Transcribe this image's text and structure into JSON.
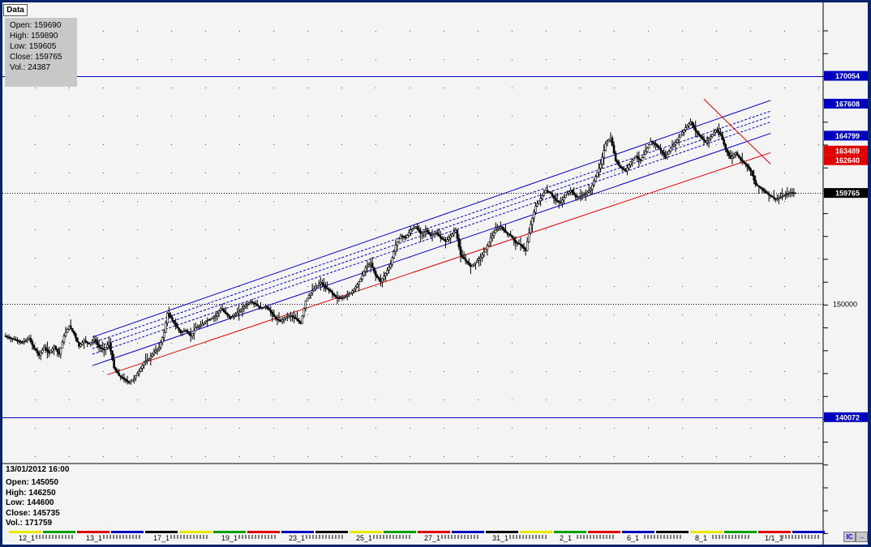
{
  "toolbar": {
    "tab_label": "Data"
  },
  "ohlc_panel": {
    "open": "Open: 159690",
    "high": "High: 159890",
    "low": "Low: 159605",
    "close": "Close: 159765",
    "vol": "Vol.: 24387"
  },
  "cursor_panel": {
    "datetime": "13/01/2012 16:00",
    "open": "Open: 145050",
    "high": "High: 146250",
    "low": "Low: 144600",
    "close": "Close: 145735",
    "vol": "Vol.: 171759"
  },
  "controls": {
    "btn1": "IC",
    "btn2": "→"
  },
  "colors": {
    "background": "#f4f4f4",
    "frame": "#0a246a",
    "candle": "#000000",
    "channel": "#0000c0",
    "trendline": "#e00000",
    "tag_blue": "#0000c0",
    "tag_red": "#e00000",
    "tag_black": "#000000"
  },
  "chart_data": {
    "type": "candlestick",
    "title": "",
    "xlabel": "",
    "ylabel": "",
    "ylim": [
      136000,
      176500
    ],
    "grid": "dotted",
    "x_ticks": [
      "12_1",
      "13_1",
      "17_1",
      "19_1",
      "23_1",
      "25_1",
      "27_1",
      "31_1",
      "2_1",
      "6_1",
      "8_1",
      "1/1_1"
    ],
    "y_ticks": [
      150000
    ],
    "price_tags": [
      {
        "value": 170054,
        "label": "170054",
        "style": "blue"
      },
      {
        "value": 167608,
        "label": "167608",
        "style": "blue"
      },
      {
        "value": 164799,
        "label": "164799",
        "style": "blue"
      },
      {
        "value": 163489,
        "label": "163489",
        "style": "red"
      },
      {
        "value": 162640,
        "label": "162640",
        "style": "red"
      },
      {
        "value": 159765,
        "label": "159765",
        "style": "black"
      },
      {
        "value": 140072,
        "label": "140072",
        "style": "blue"
      }
    ],
    "horizontal_lines": [
      {
        "value": 170054,
        "style": "solid-blue"
      },
      {
        "value": 159765,
        "style": "dotted-black"
      },
      {
        "value": 150000,
        "style": "dotted-black"
      },
      {
        "value": 140072,
        "style": "solid-blue"
      }
    ],
    "close_path": [
      [
        0,
        147200
      ],
      [
        6,
        146900
      ],
      [
        11,
        146600
      ],
      [
        15,
        147000
      ],
      [
        18,
        146100
      ],
      [
        21,
        145500
      ],
      [
        24,
        146200
      ],
      [
        27,
        145700
      ],
      [
        30,
        146300
      ],
      [
        33,
        145600
      ],
      [
        36,
        147200
      ],
      [
        39,
        148100
      ],
      [
        42,
        147400
      ],
      [
        45,
        146300
      ],
      [
        48,
        146800
      ],
      [
        51,
        146500
      ],
      [
        54,
        146900
      ],
      [
        57,
        146200
      ],
      [
        60,
        146000
      ],
      [
        63,
        146600
      ],
      [
        66,
        144400
      ],
      [
        69,
        143700
      ],
      [
        72,
        143400
      ],
      [
        75,
        143100
      ],
      [
        78,
        143500
      ],
      [
        81,
        144100
      ],
      [
        84,
        144900
      ],
      [
        87,
        145200
      ],
      [
        90,
        145800
      ],
      [
        93,
        146200
      ],
      [
        96,
        147500
      ],
      [
        98,
        149200
      ],
      [
        100,
        148800
      ],
      [
        103,
        148100
      ],
      [
        106,
        147500
      ],
      [
        109,
        147700
      ],
      [
        112,
        147200
      ],
      [
        115,
        147900
      ],
      [
        118,
        148100
      ],
      [
        121,
        148500
      ],
      [
        124,
        148700
      ],
      [
        127,
        149000
      ],
      [
        130,
        149600
      ],
      [
        133,
        149200
      ],
      [
        136,
        148800
      ],
      [
        139,
        149100
      ],
      [
        142,
        149500
      ],
      [
        145,
        149900
      ],
      [
        148,
        150200
      ],
      [
        151,
        150000
      ],
      [
        154,
        149600
      ],
      [
        157,
        149800
      ],
      [
        160,
        149300
      ],
      [
        163,
        148700
      ],
      [
        166,
        148500
      ],
      [
        169,
        148900
      ],
      [
        172,
        149000
      ],
      [
        175,
        148700
      ],
      [
        178,
        148300
      ],
      [
        181,
        150300
      ],
      [
        184,
        151000
      ],
      [
        187,
        151500
      ],
      [
        190,
        151900
      ],
      [
        193,
        151400
      ],
      [
        196,
        151100
      ],
      [
        199,
        150600
      ],
      [
        202,
        150500
      ],
      [
        205,
        150700
      ],
      [
        208,
        151000
      ],
      [
        211,
        151500
      ],
      [
        214,
        152200
      ],
      [
        217,
        153200
      ],
      [
        220,
        153600
      ],
      [
        223,
        152500
      ],
      [
        226,
        152000
      ],
      [
        229,
        152700
      ],
      [
        232,
        153500
      ],
      [
        235,
        155200
      ],
      [
        238,
        156000
      ],
      [
        241,
        155800
      ],
      [
        244,
        156500
      ],
      [
        247,
        156800
      ],
      [
        250,
        156200
      ],
      [
        253,
        156500
      ],
      [
        256,
        156000
      ],
      [
        259,
        156300
      ],
      [
        262,
        155800
      ],
      [
        265,
        155500
      ],
      [
        268,
        156000
      ],
      [
        271,
        156500
      ],
      [
        274,
        154300
      ],
      [
        277,
        153800
      ],
      [
        280,
        153300
      ],
      [
        283,
        153700
      ],
      [
        286,
        154100
      ],
      [
        289,
        154800
      ],
      [
        292,
        155800
      ],
      [
        295,
        156500
      ],
      [
        298,
        156800
      ],
      [
        301,
        156300
      ],
      [
        304,
        156000
      ],
      [
        307,
        155400
      ],
      [
        310,
        155200
      ],
      [
        313,
        154700
      ],
      [
        316,
        157000
      ],
      [
        319,
        158600
      ],
      [
        322,
        159300
      ],
      [
        325,
        160000
      ],
      [
        328,
        159700
      ],
      [
        331,
        159100
      ],
      [
        334,
        158900
      ],
      [
        337,
        159600
      ],
      [
        340,
        160000
      ],
      [
        343,
        159400
      ],
      [
        346,
        159500
      ],
      [
        349,
        159700
      ],
      [
        352,
        160100
      ],
      [
        355,
        161200
      ],
      [
        358,
        162300
      ],
      [
        361,
        164100
      ],
      [
        364,
        164600
      ],
      [
        367,
        162600
      ],
      [
        370,
        162000
      ],
      [
        373,
        161700
      ],
      [
        376,
        162500
      ],
      [
        379,
        163000
      ],
      [
        382,
        162600
      ],
      [
        385,
        163400
      ],
      [
        388,
        164300
      ],
      [
        391,
        164000
      ],
      [
        394,
        163500
      ],
      [
        397,
        162900
      ],
      [
        400,
        163700
      ],
      [
        403,
        164200
      ],
      [
        406,
        164900
      ],
      [
        409,
        165500
      ],
      [
        412,
        166000
      ],
      [
        415,
        165200
      ],
      [
        418,
        164700
      ],
      [
        421,
        164200
      ],
      [
        424,
        164700
      ],
      [
        427,
        165300
      ],
      [
        430,
        164900
      ],
      [
        433,
        163600
      ],
      [
        436,
        162800
      ],
      [
        439,
        163300
      ],
      [
        442,
        162700
      ],
      [
        445,
        162300
      ],
      [
        448,
        161700
      ],
      [
        451,
        160500
      ],
      [
        454,
        160200
      ],
      [
        457,
        159800
      ],
      [
        460,
        159500
      ],
      [
        463,
        159200
      ],
      [
        466,
        159400
      ],
      [
        469,
        159600
      ],
      [
        472,
        159800
      ],
      [
        475,
        159765
      ]
    ],
    "channel": {
      "color": "#0000c0",
      "upper": [
        [
          53,
          147100
        ],
        [
          460,
          167900
        ]
      ],
      "lower": [
        [
          53,
          144600
        ],
        [
          460,
          165000
        ]
      ],
      "inner_dashed": [
        [
          [
            53,
            146600
          ],
          [
            460,
            166950
          ]
        ],
        [
          [
            53,
            146100
          ],
          [
            460,
            166500
          ]
        ],
        [
          [
            53,
            145600
          ],
          [
            460,
            166000
          ]
        ]
      ]
    },
    "trendlines": [
      {
        "color": "#e00000",
        "points": [
          [
            62,
            143800
          ],
          [
            460,
            163300
          ]
        ]
      },
      {
        "color": "#e00000",
        "points": [
          [
            420,
            168000
          ],
          [
            460,
            162300
          ]
        ]
      }
    ]
  }
}
